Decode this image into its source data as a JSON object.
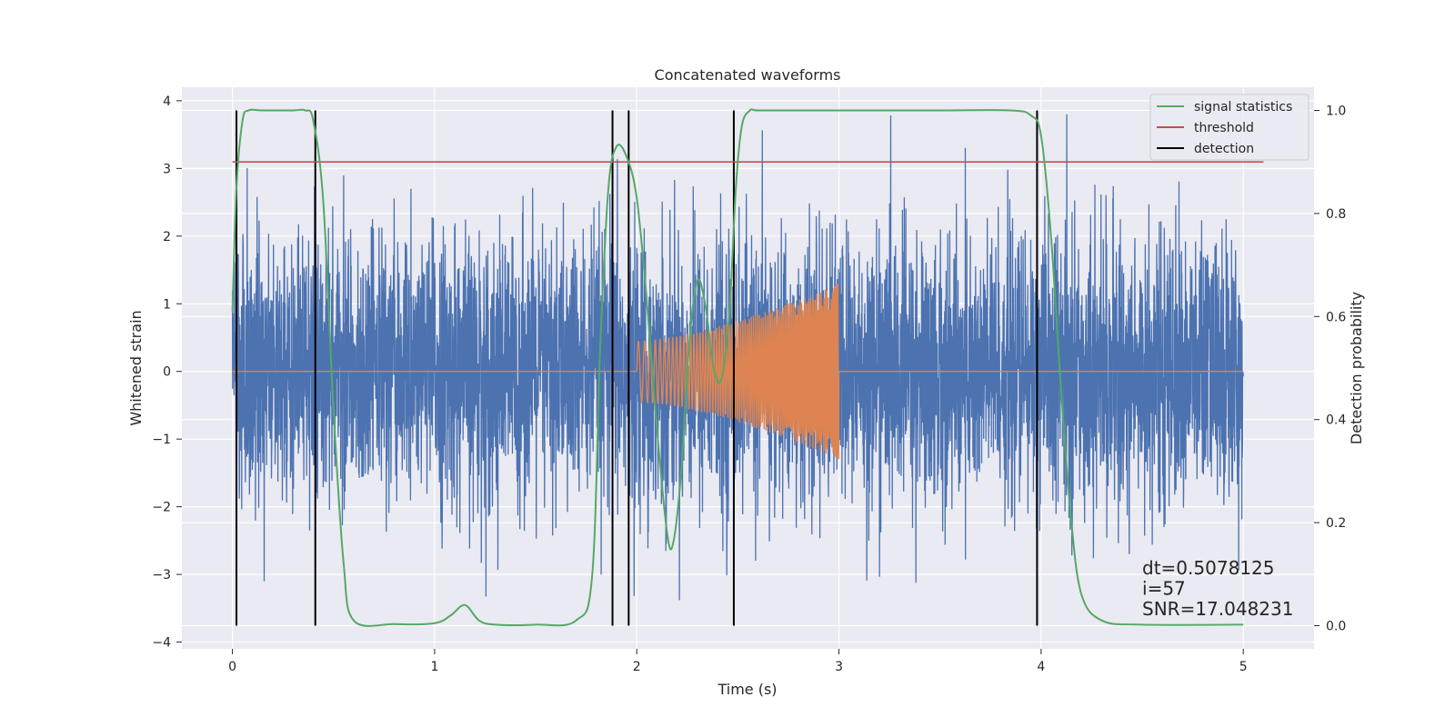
{
  "chart_data": {
    "type": "line",
    "title": "Concatenated waveforms",
    "xlabel": "Time (s)",
    "ylabel": "Whitened strain",
    "y2label": "Detection probability",
    "xlim": [
      -0.25,
      5.35
    ],
    "ylim": [
      -4.1,
      4.2
    ],
    "y2lim": [
      -0.045,
      1.045
    ],
    "x_ticks": [
      0,
      1,
      2,
      3,
      4,
      5
    ],
    "y_ticks": [
      -4,
      -3,
      -2,
      -1,
      0,
      1,
      2,
      3,
      4
    ],
    "y2_ticks": [
      0.0,
      0.2,
      0.4,
      0.6,
      0.8,
      1.0
    ],
    "x_tick_labels": [
      "0",
      "1",
      "2",
      "3",
      "4",
      "5"
    ],
    "y_tick_labels": [
      "−4",
      "−3",
      "−2",
      "−1",
      "0",
      "1",
      "2",
      "3",
      "4"
    ],
    "y2_tick_labels": [
      "0.0",
      "0.2",
      "0.4",
      "0.6",
      "0.8",
      "1.0"
    ],
    "grid": true,
    "legend_position": "top-right",
    "colors": {
      "background": "#eaeaf2",
      "noise": "#4c72b0",
      "template": "#dd8452",
      "signal_statistics": "#55a868",
      "threshold": "#c44e52",
      "detection": "#000000"
    },
    "series": [
      {
        "name": "signal statistics",
        "axis": "y2",
        "x": [
          0.0,
          0.02,
          0.05,
          0.08,
          0.15,
          0.3,
          0.36,
          0.4,
          0.45,
          0.5,
          0.55,
          0.6,
          0.8,
          1.0,
          1.08,
          1.15,
          1.22,
          1.3,
          1.5,
          1.7,
          1.78,
          1.82,
          1.86,
          1.9,
          1.95,
          2.0,
          2.05,
          2.1,
          2.15,
          2.18,
          2.22,
          2.26,
          2.3,
          2.34,
          2.38,
          2.42,
          2.46,
          2.49,
          2.52,
          2.56,
          2.6,
          2.8,
          3.0,
          3.5,
          3.85,
          3.95,
          4.0,
          4.05,
          4.1,
          4.15,
          4.2,
          4.3,
          4.5,
          5.0
        ],
        "values": [
          0.61,
          0.85,
          0.98,
          1.0,
          1.0,
          1.0,
          1.0,
          0.98,
          0.82,
          0.42,
          0.12,
          0.01,
          0.003,
          0.005,
          0.02,
          0.04,
          0.01,
          0.002,
          0.002,
          0.01,
          0.1,
          0.55,
          0.85,
          0.93,
          0.91,
          0.83,
          0.63,
          0.38,
          0.18,
          0.16,
          0.3,
          0.55,
          0.67,
          0.62,
          0.5,
          0.48,
          0.62,
          0.85,
          0.97,
          1.0,
          1.0,
          1.0,
          1.0,
          1.0,
          1.0,
          0.99,
          0.95,
          0.75,
          0.45,
          0.2,
          0.06,
          0.01,
          0.002,
          0.002
        ]
      },
      {
        "name": "threshold",
        "axis": "y2",
        "x": [
          0.0,
          5.1
        ],
        "values": [
          0.9,
          0.9
        ]
      },
      {
        "name": "detection",
        "axis": "y2",
        "type": "vlines",
        "x": [
          0.02,
          0.41,
          1.88,
          1.96,
          2.48,
          3.98
        ],
        "ymin": 0.0,
        "ymax": 1.0
      },
      {
        "name": "",
        "axis": "y",
        "kind": "noise",
        "x_range": [
          0.0,
          5.0
        ],
        "amplitude_typical": 1.0,
        "peak_abs": 3.8
      },
      {
        "name": "",
        "axis": "y",
        "kind": "template",
        "x_range": [
          0.0,
          5.0
        ],
        "chirp_start": 2.0,
        "chirp_end": 3.0,
        "amplitude_start": 0.45,
        "amplitude_end": 1.3
      }
    ],
    "annotations": [
      {
        "text": "dt=0.5078125",
        "x": 4.5,
        "y": -3.0
      },
      {
        "text": " i=57",
        "x": 4.5,
        "y": -3.3
      },
      {
        "text": "SNR=17.048231",
        "x": 4.5,
        "y": -3.6
      }
    ]
  }
}
